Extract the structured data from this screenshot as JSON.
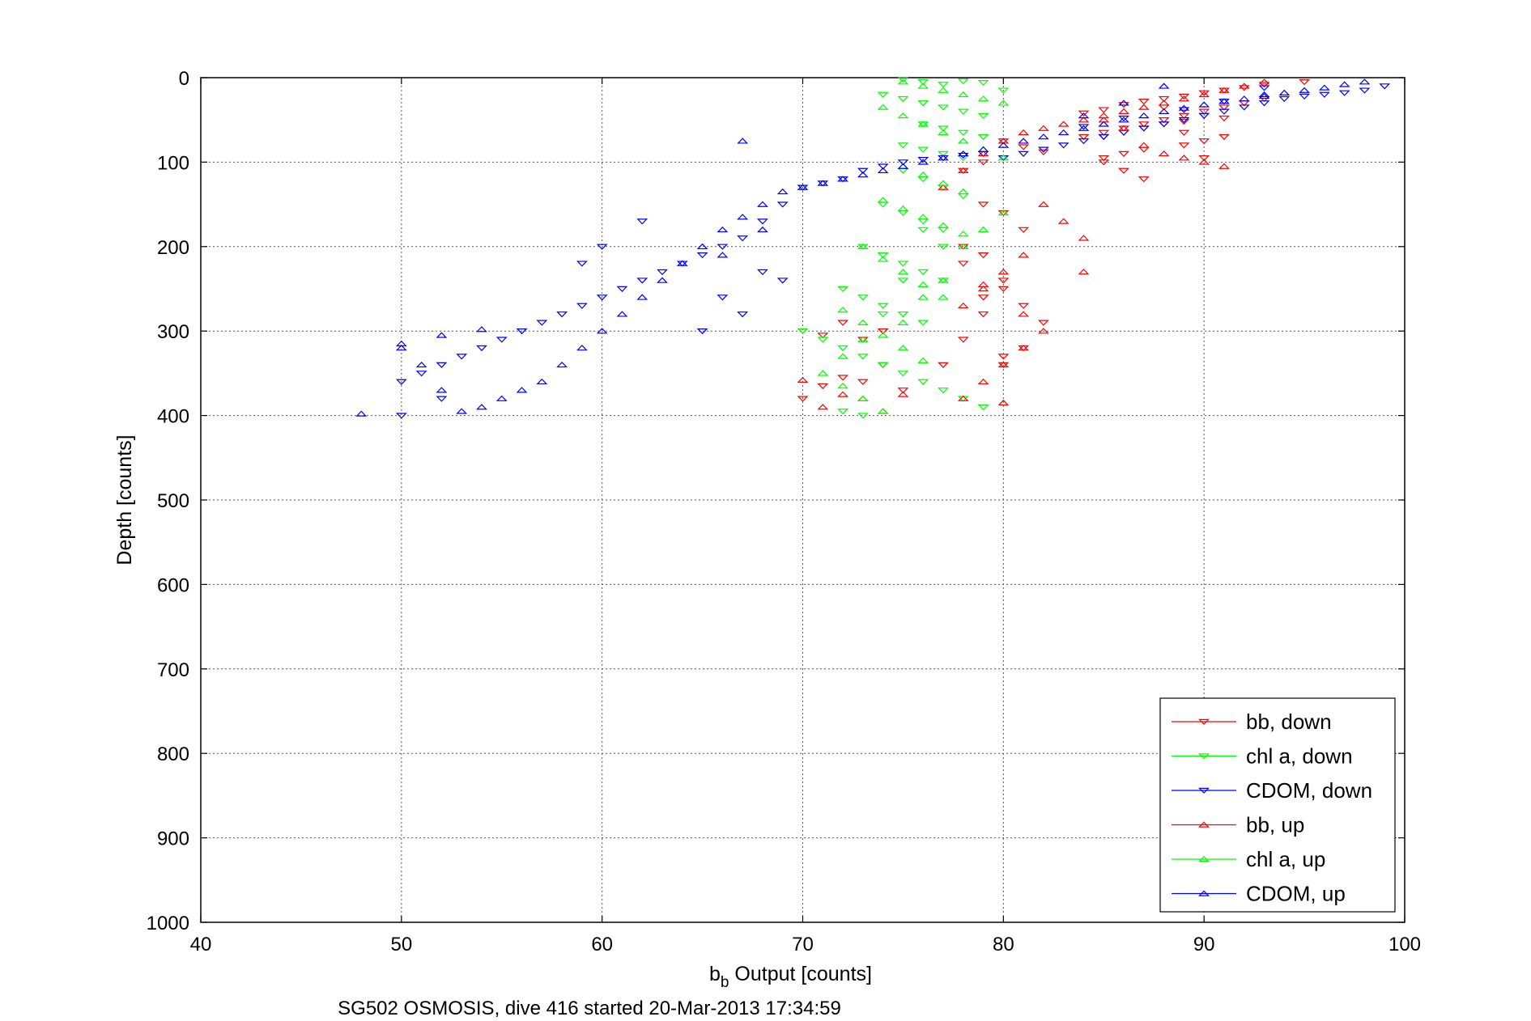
{
  "chart_data": {
    "type": "scatter",
    "xlabel_main": "b",
    "xlabel_sub": "b",
    "xlabel_rest": " Output [counts]",
    "ylabel": "Depth [counts]",
    "caption": "SG502 OSMOSIS, dive 416 started 20-Mar-2013 17:34:59",
    "xlim": [
      40,
      100
    ],
    "ylim": [
      0,
      1000
    ],
    "y_reversed": true,
    "grid": true,
    "legend_position": "bottom-right",
    "xticks": [
      "40",
      "50",
      "60",
      "70",
      "80",
      "90",
      "100"
    ],
    "yticks": [
      "0",
      "100",
      "200",
      "300",
      "400",
      "500",
      "600",
      "700",
      "800",
      "900",
      "1000"
    ],
    "series": [
      {
        "name": "bb, down",
        "color": "#ff0000",
        "marker": "triangle-down",
        "x": [
          95,
          93,
          92,
          91,
          90,
          89,
          88,
          87,
          86,
          85,
          84,
          90,
          91,
          89,
          88,
          87,
          86,
          85,
          90,
          91,
          89,
          86,
          87,
          85,
          80,
          81,
          82,
          79,
          78,
          80,
          81,
          79,
          78,
          80,
          81,
          82,
          79,
          78,
          77,
          80,
          81,
          75,
          74,
          73,
          72,
          71,
          70,
          74,
          73,
          72,
          71,
          80,
          79,
          85,
          86,
          87,
          88,
          89,
          90,
          93,
          92,
          91,
          90,
          89,
          88,
          87,
          86,
          85,
          84,
          80,
          78,
          79
        ],
        "y": [
          5,
          8,
          12,
          15,
          18,
          22,
          25,
          28,
          32,
          38,
          42,
          45,
          48,
          52,
          55,
          60,
          65,
          70,
          75,
          70,
          80,
          90,
          85,
          95,
          75,
          82,
          88,
          100,
          110,
          160,
          180,
          150,
          200,
          250,
          270,
          290,
          280,
          310,
          340,
          330,
          320,
          370,
          340,
          360,
          355,
          365,
          380,
          300,
          310,
          290,
          305,
          340,
          260,
          100,
          110,
          120,
          35,
          65,
          95,
          25,
          30,
          35,
          40,
          45,
          50,
          55,
          60,
          65,
          70,
          240,
          220,
          210
        ]
      },
      {
        "name": "chl a, down",
        "color": "#00ff00",
        "marker": "triangle-down",
        "x": [
          75,
          76,
          77,
          78,
          79,
          80,
          74,
          75,
          76,
          77,
          78,
          79,
          76,
          77,
          78,
          79,
          75,
          76,
          77,
          78,
          75,
          76,
          77,
          78,
          74,
          75,
          76,
          77,
          73,
          74,
          75,
          76,
          77,
          72,
          73,
          74,
          75,
          76,
          70,
          71,
          72,
          73,
          74,
          75,
          76,
          77,
          78,
          79,
          77,
          76,
          75,
          74,
          73,
          72
        ],
        "y": [
          2,
          5,
          8,
          4,
          6,
          15,
          20,
          25,
          30,
          35,
          40,
          45,
          55,
          60,
          65,
          70,
          80,
          85,
          90,
          95,
          110,
          120,
          130,
          140,
          150,
          160,
          170,
          180,
          200,
          210,
          220,
          230,
          240,
          250,
          260,
          270,
          280,
          290,
          300,
          310,
          320,
          330,
          340,
          350,
          360,
          370,
          380,
          390,
          200,
          180,
          240,
          280,
          400,
          395
        ]
      },
      {
        "name": "CDOM, down",
        "color": "#0000ff",
        "marker": "triangle-down",
        "x": [
          99,
          98,
          97,
          96,
          95,
          94,
          93,
          92,
          91,
          90,
          89,
          88,
          87,
          86,
          85,
          84,
          83,
          82,
          81,
          80,
          79,
          78,
          77,
          76,
          75,
          74,
          73,
          72,
          71,
          70,
          69,
          68,
          67,
          66,
          65,
          64,
          63,
          62,
          61,
          60,
          59,
          58,
          57,
          56,
          55,
          54,
          53,
          52,
          51,
          50,
          93,
          91,
          89,
          86,
          84,
          68,
          66,
          69,
          67,
          65,
          62,
          60,
          59,
          50,
          52
        ],
        "y": [
          10,
          15,
          18,
          20,
          22,
          25,
          30,
          35,
          40,
          45,
          50,
          55,
          60,
          65,
          70,
          75,
          80,
          85,
          90,
          95,
          90,
          92,
          95,
          97,
          100,
          105,
          110,
          120,
          125,
          130,
          150,
          170,
          190,
          200,
          210,
          220,
          230,
          240,
          250,
          260,
          270,
          280,
          290,
          300,
          310,
          320,
          330,
          340,
          350,
          360,
          12,
          28,
          38,
          48,
          58,
          230,
          260,
          240,
          280,
          300,
          170,
          200,
          220,
          400,
          380
        ]
      },
      {
        "name": "bb, up",
        "color": "#ff0000",
        "marker": "triangle-up",
        "x": [
          93,
          92,
          91,
          90,
          89,
          88,
          87,
          86,
          85,
          84,
          83,
          82,
          81,
          80,
          79,
          78,
          77,
          82,
          83,
          84,
          81,
          80,
          79,
          78,
          82,
          81,
          80,
          79,
          78,
          84,
          80,
          70,
          71,
          72,
          73,
          74,
          75,
          79,
          81,
          91,
          90,
          89,
          88,
          87,
          86,
          85
        ],
        "y": [
          5,
          10,
          15,
          20,
          25,
          30,
          35,
          40,
          45,
          50,
          55,
          60,
          65,
          75,
          90,
          110,
          130,
          150,
          170,
          190,
          210,
          230,
          250,
          270,
          300,
          320,
          340,
          360,
          380,
          230,
          385,
          358,
          390,
          375,
          380,
          395,
          375,
          245,
          280,
          105,
          100,
          95,
          90,
          80,
          60,
          50
        ]
      },
      {
        "name": "chl a, up",
        "color": "#00ff00",
        "marker": "triangle-up",
        "x": [
          75,
          76,
          77,
          78,
          79,
          80,
          74,
          75,
          76,
          77,
          78,
          79,
          80,
          75,
          76,
          77,
          78,
          74,
          75,
          76,
          77,
          78,
          73,
          74,
          75,
          76,
          77,
          72,
          73,
          74,
          75,
          76,
          71,
          72,
          73,
          74,
          75,
          76,
          77,
          78,
          79,
          80,
          73,
          72
        ],
        "y": [
          5,
          10,
          15,
          20,
          25,
          30,
          35,
          45,
          55,
          65,
          75,
          85,
          95,
          105,
          115,
          125,
          135,
          145,
          155,
          165,
          175,
          185,
          200,
          215,
          230,
          245,
          260,
          275,
          290,
          305,
          320,
          335,
          350,
          365,
          380,
          395,
          290,
          260,
          240,
          200,
          180,
          160,
          310,
          330
        ]
      },
      {
        "name": "CDOM, up",
        "color": "#0000ff",
        "marker": "triangle-up",
        "x": [
          98,
          97,
          96,
          95,
          94,
          93,
          92,
          91,
          90,
          89,
          88,
          87,
          86,
          85,
          84,
          83,
          82,
          81,
          80,
          79,
          78,
          77,
          76,
          75,
          74,
          73,
          72,
          71,
          70,
          69,
          68,
          67,
          66,
          65,
          64,
          63,
          62,
          61,
          60,
          59,
          58,
          57,
          56,
          55,
          54,
          53,
          52,
          51,
          50,
          48,
          93,
          88,
          86,
          84,
          67,
          68,
          66,
          54,
          50,
          52
        ],
        "y": [
          5,
          8,
          12,
          15,
          18,
          22,
          25,
          28,
          32,
          36,
          40,
          45,
          50,
          55,
          60,
          65,
          70,
          75,
          80,
          85,
          90,
          95,
          100,
          105,
          110,
          115,
          120,
          125,
          130,
          135,
          150,
          165,
          180,
          200,
          220,
          240,
          260,
          280,
          300,
          320,
          340,
          360,
          370,
          380,
          390,
          395,
          370,
          340,
          320,
          398,
          20,
          10,
          30,
          45,
          75,
          180,
          210,
          298,
          315,
          305
        ]
      }
    ]
  }
}
